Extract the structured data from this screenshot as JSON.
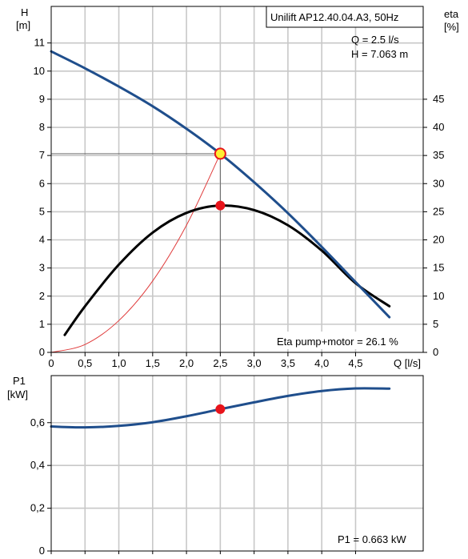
{
  "chart_data": [
    {
      "type": "line",
      "title": "Unilift AP12.40.04.A3, 50Hz",
      "duty_point_text": [
        "Q = 2.5 l/s",
        "H = 7.063 m"
      ],
      "footer_text": "Eta pump+motor = 26.1 %",
      "x_axis": {
        "label": "Q [l/s]",
        "range": [
          0,
          5.5
        ],
        "ticks": [
          0,
          0.5,
          1,
          1.5,
          2,
          2.5,
          3,
          3.5,
          4,
          4.5
        ],
        "tick_labels": [
          "0",
          "0,5",
          "1,0",
          "1,5",
          "2,0",
          "2,5",
          "3,0",
          "3,5",
          "4,0",
          "4,5"
        ]
      },
      "y_axis_left": {
        "label_lines": [
          "H",
          "[m]"
        ],
        "range": [
          0,
          12.3
        ],
        "ticks": [
          0,
          1,
          2,
          3,
          4,
          5,
          6,
          7,
          8,
          9,
          10,
          11
        ],
        "tick_labels": [
          "0",
          "1",
          "2",
          "3",
          "4",
          "5",
          "6",
          "7",
          "8",
          "9",
          "10",
          "11"
        ]
      },
      "y_axis_right": {
        "label_lines": [
          "eta",
          "[%]"
        ],
        "range": [
          0,
          61.5
        ],
        "ticks": [
          0,
          5,
          10,
          15,
          20,
          25,
          30,
          35,
          40,
          45
        ],
        "tick_labels": [
          "0",
          "5",
          "10",
          "15",
          "20",
          "25",
          "30",
          "35",
          "40",
          "45"
        ]
      },
      "grid": true,
      "series": [
        {
          "key": "head",
          "axis": "left",
          "color": "#1f4e8c",
          "x": [
            0,
            0.5,
            1.0,
            1.5,
            2.0,
            2.5,
            3.0,
            3.5,
            4.0,
            4.5,
            5.0
          ],
          "values": [
            10.7,
            10.1,
            9.45,
            8.75,
            7.95,
            7.063,
            6.05,
            4.95,
            3.75,
            2.5,
            1.25
          ]
        },
        {
          "key": "efficiency",
          "axis": "right",
          "color": "#000000",
          "x": [
            0.2,
            0.5,
            1.0,
            1.5,
            2.0,
            2.5,
            3.0,
            3.5,
            4.0,
            4.5,
            5.0
          ],
          "values": [
            3.1,
            8.2,
            15.6,
            21.3,
            24.8,
            26.1,
            25.3,
            22.6,
            18.1,
            12.3,
            8.2
          ]
        },
        {
          "key": "system_curve",
          "axis": "left",
          "color": "#e03c3c",
          "x": [
            0,
            0.5,
            1.0,
            1.5,
            2.0,
            2.5
          ],
          "values": [
            0,
            0.28,
            1.13,
            2.54,
            4.52,
            7.063
          ]
        }
      ],
      "duty_point": {
        "x": 2.5,
        "head": 7.063,
        "efficiency": 26.1
      }
    },
    {
      "type": "line",
      "footer_text": "P1 = 0.663 kW",
      "x_axis": {
        "range": [
          0,
          5.5
        ],
        "ticks": [
          0,
          0.5,
          1,
          1.5,
          2,
          2.5,
          3,
          3.5,
          4,
          4.5
        ]
      },
      "y_axis_left": {
        "label_lines": [
          "P1",
          "[kW]"
        ],
        "range": [
          0,
          0.82
        ],
        "ticks": [
          0,
          0.2,
          0.4,
          0.6
        ],
        "tick_labels": [
          "0",
          "0,2",
          "0,4",
          "0,6"
        ]
      },
      "grid": true,
      "series": [
        {
          "key": "power",
          "axis": "left",
          "color": "#1f4e8c",
          "x": [
            0,
            0.5,
            1.0,
            1.5,
            2.0,
            2.5,
            3.0,
            3.5,
            4.0,
            4.5,
            5.0
          ],
          "values": [
            0.582,
            0.578,
            0.585,
            0.602,
            0.63,
            0.663,
            0.695,
            0.725,
            0.748,
            0.76,
            0.759
          ]
        }
      ],
      "duty_point": {
        "x": 2.5,
        "power": 0.663
      }
    }
  ]
}
